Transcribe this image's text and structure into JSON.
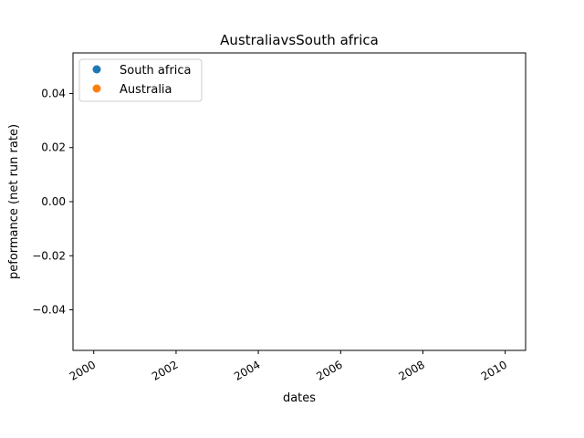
{
  "chart_data": {
    "type": "scatter",
    "title": "AustraliavsSouth africa",
    "xlabel": "dates",
    "ylabel": "peformance (net run rate)",
    "x_tick_labels": [
      "2000",
      "2002",
      "2004",
      "2006",
      "2008",
      "2010"
    ],
    "x_tick_values": [
      "2000-01-01",
      "2002-01-01",
      "2004-01-01",
      "2006-01-01",
      "2008-01-01",
      "2010-01-01"
    ],
    "xlim": [
      "1999-07-01",
      "2010-07-01"
    ],
    "y_tick_values": [
      0.04,
      0.02,
      0.0,
      -0.02,
      -0.04
    ],
    "y_tick_labels": [
      "0.04",
      "0.02",
      "0.00",
      "−0.02",
      "−0.04"
    ],
    "ylim": [
      -0.055,
      0.055
    ],
    "grid": false,
    "legend_position": "top-left",
    "series": [
      {
        "name": "South africa",
        "color": "#1f77b4",
        "marker": "circle",
        "x": [],
        "y": []
      },
      {
        "name": "Australia",
        "color": "#ff7f0e",
        "marker": "circle",
        "x": [],
        "y": []
      }
    ]
  }
}
